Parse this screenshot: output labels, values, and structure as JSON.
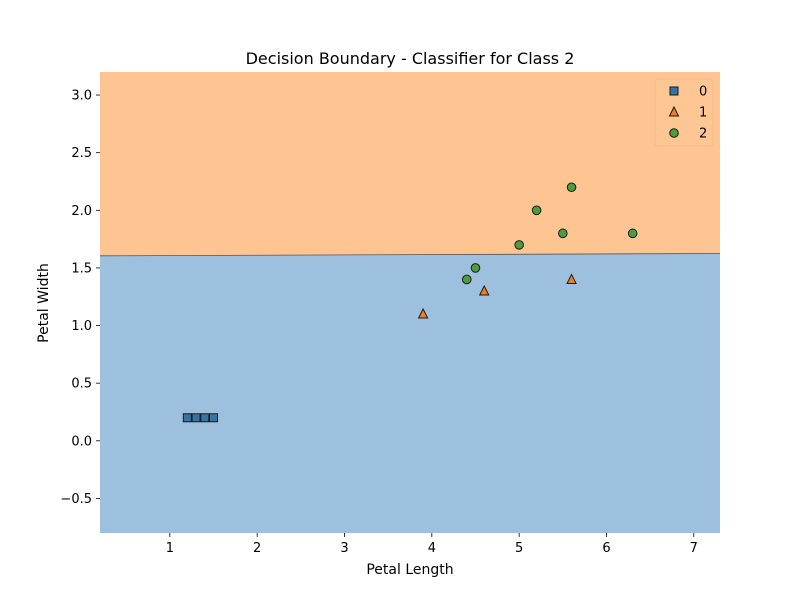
{
  "chart_data": {
    "type": "scatter",
    "title": "Decision Boundary - Classifier for Class 2",
    "xlabel": "Petal Length",
    "ylabel": "Petal Width",
    "xlim": [
      0.2,
      7.3
    ],
    "ylim": [
      -0.8,
      3.2
    ],
    "xticks": [
      1,
      2,
      3,
      4,
      5,
      6,
      7
    ],
    "yticks": [
      -0.5,
      0.0,
      0.5,
      1.0,
      1.5,
      2.0,
      2.5,
      3.0
    ],
    "ytick_labels": [
      "−0.5",
      "0.0",
      "0.5",
      "1.0",
      "1.5",
      "2.0",
      "2.5",
      "3.0"
    ],
    "grid": false,
    "legend_position": "top-right",
    "regions": [
      {
        "class": "0",
        "color": "#9cc0de",
        "placement": "below-boundary"
      },
      {
        "class": "2",
        "color": "#fec593",
        "placement": "above-boundary"
      }
    ],
    "boundary": {
      "x": [
        0.2,
        7.3
      ],
      "y": [
        1.605,
        1.625
      ]
    },
    "series": [
      {
        "name": "0",
        "marker": "square",
        "color": "#3475a8",
        "points": [
          [
            1.2,
            0.2
          ],
          [
            1.3,
            0.2
          ],
          [
            1.4,
            0.2
          ],
          [
            1.5,
            0.2
          ]
        ]
      },
      {
        "name": "1",
        "marker": "triangle",
        "color": "#f07f20",
        "points": [
          [
            3.9,
            1.1
          ],
          [
            4.6,
            1.3
          ],
          [
            5.6,
            1.4
          ]
        ]
      },
      {
        "name": "2",
        "marker": "circle",
        "color": "#4d9d3c",
        "points": [
          [
            4.4,
            1.4
          ],
          [
            4.5,
            1.5
          ],
          [
            5.0,
            1.7
          ],
          [
            5.2,
            2.0
          ],
          [
            5.5,
            1.8
          ],
          [
            5.6,
            2.2
          ],
          [
            6.3,
            1.8
          ]
        ]
      }
    ]
  }
}
